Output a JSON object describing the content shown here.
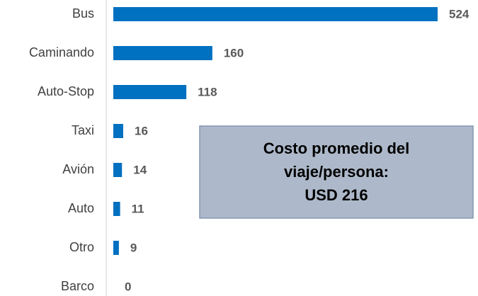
{
  "chart_data": {
    "type": "bar",
    "orientation": "horizontal",
    "categories": [
      "Bus",
      "Caminando",
      "Auto-Stop",
      "Taxi",
      "Avión",
      "Auto",
      "Otro",
      "Barco"
    ],
    "values": [
      524,
      160,
      118,
      16,
      14,
      11,
      9,
      0
    ],
    "color": "#0070c0",
    "annotation": [
      "Costo promedio del",
      "viaje/persona:",
      "USD 216"
    ]
  }
}
